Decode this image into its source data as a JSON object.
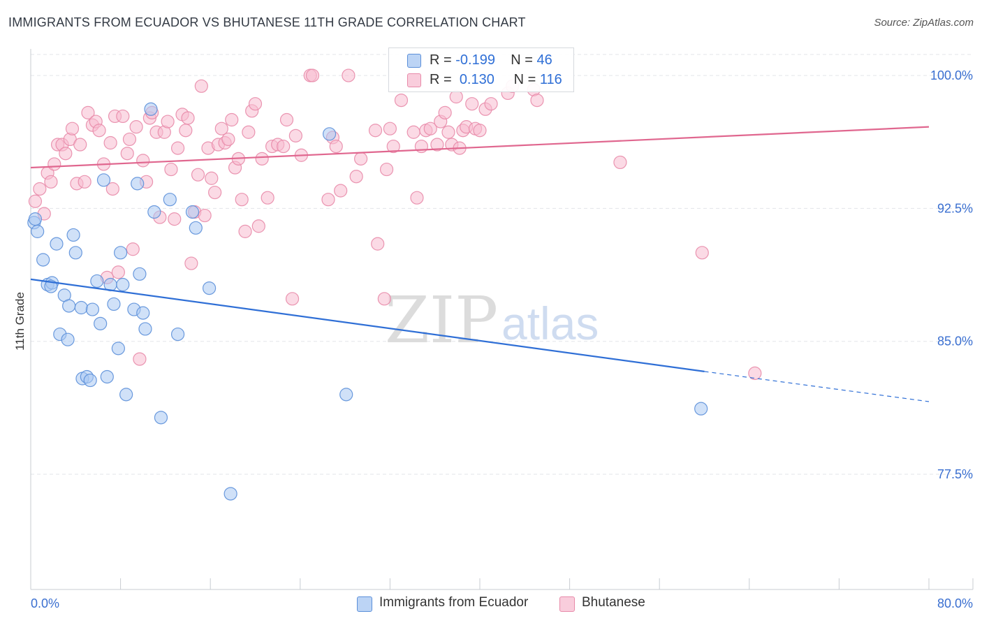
{
  "title": "IMMIGRANTS FROM ECUADOR VS BHUTANESE 11TH GRADE CORRELATION CHART",
  "source": "Source: ZipAtlas.com",
  "watermark": {
    "zip": "ZIP",
    "atlas": "atlas"
  },
  "legend": {
    "rows": [
      {
        "r_label": "R =",
        "r_value": "-0.199",
        "n_label": "N =",
        "n_value": "46"
      },
      {
        "r_label": "R =",
        "r_value": "0.130",
        "n_label": "N =",
        "n_value": "116"
      }
    ]
  },
  "colors": {
    "series1_fill": "#a9c8f2",
    "series1_stroke": "#5b8fd9",
    "series1_line": "#2f6fd6",
    "series2_fill": "#f7bcd0",
    "series2_stroke": "#e88aa9",
    "series2_line": "#e0678f",
    "axis_label": "#3a6fd0",
    "grid": "#e3e5e9"
  },
  "chart_data": {
    "type": "scatter",
    "title": "IMMIGRANTS FROM ECUADOR VS BHUTANESE 11TH GRADE CORRELATION CHART",
    "xlabel": "",
    "ylabel": "11th Grade",
    "xlim": [
      0,
      80
    ],
    "ylim": [
      71.0,
      101.5
    ],
    "x_tick_labels": [
      "0.0%",
      "80.0%"
    ],
    "y_ticks": [
      77.5,
      85.0,
      92.5,
      100.0
    ],
    "y_tick_labels": [
      "77.5%",
      "85.0%",
      "92.5%",
      "100.0%"
    ],
    "grid": true,
    "series": [
      {
        "name": "Immigrants from Ecuador",
        "color": "#a9c8f2",
        "trend": {
          "x0": 0,
          "y0": 88.5,
          "x1": 60,
          "y1": 83.3,
          "dash_to_x": 80,
          "dash_to_y": 81.6
        },
        "points": [
          [
            0.3,
            91.7
          ],
          [
            0.6,
            91.2
          ],
          [
            1.1,
            89.6
          ],
          [
            1.5,
            88.2
          ],
          [
            1.9,
            88.3
          ],
          [
            2.3,
            90.5
          ],
          [
            2.6,
            85.4
          ],
          [
            3.0,
            87.6
          ],
          [
            3.3,
            85.1
          ],
          [
            3.4,
            87.0
          ],
          [
            3.8,
            91.0
          ],
          [
            4.0,
            90.0
          ],
          [
            4.5,
            86.9
          ],
          [
            4.6,
            82.9
          ],
          [
            5.0,
            83.0
          ],
          [
            5.3,
            82.8
          ],
          [
            5.5,
            86.8
          ],
          [
            5.9,
            88.4
          ],
          [
            6.2,
            86.0
          ],
          [
            6.5,
            94.1
          ],
          [
            6.8,
            83.0
          ],
          [
            7.1,
            88.2
          ],
          [
            7.4,
            87.1
          ],
          [
            7.8,
            84.6
          ],
          [
            8.0,
            90.0
          ],
          [
            8.2,
            88.2
          ],
          [
            8.5,
            82.0
          ],
          [
            9.2,
            86.8
          ],
          [
            9.5,
            93.9
          ],
          [
            9.7,
            88.8
          ],
          [
            10.0,
            86.6
          ],
          [
            10.2,
            85.7
          ],
          [
            10.7,
            98.1
          ],
          [
            11.0,
            92.3
          ],
          [
            11.6,
            80.7
          ],
          [
            12.4,
            93.0
          ],
          [
            13.1,
            85.4
          ],
          [
            14.4,
            92.3
          ],
          [
            14.7,
            91.4
          ],
          [
            15.9,
            88.0
          ],
          [
            17.8,
            76.4
          ],
          [
            26.6,
            96.7
          ],
          [
            28.1,
            82.0
          ],
          [
            59.7,
            81.2
          ],
          [
            0.4,
            91.9
          ],
          [
            1.8,
            88.1
          ]
        ]
      },
      {
        "name": "Bhutanese",
        "color": "#f7bcd0",
        "trend": {
          "x0": 0,
          "y0": 94.8,
          "x1": 80,
          "y1": 97.1
        },
        "points": [
          [
            0.4,
            92.9
          ],
          [
            0.8,
            93.6
          ],
          [
            1.2,
            92.2
          ],
          [
            1.5,
            94.5
          ],
          [
            1.8,
            94.0
          ],
          [
            2.1,
            95.0
          ],
          [
            2.4,
            96.1
          ],
          [
            2.8,
            96.1
          ],
          [
            3.1,
            95.6
          ],
          [
            3.5,
            96.4
          ],
          [
            3.7,
            97.0
          ],
          [
            4.1,
            93.9
          ],
          [
            4.4,
            96.1
          ],
          [
            4.8,
            94.0
          ],
          [
            5.1,
            97.9
          ],
          [
            5.5,
            97.2
          ],
          [
            5.8,
            97.4
          ],
          [
            6.1,
            96.9
          ],
          [
            6.5,
            95.0
          ],
          [
            6.8,
            88.6
          ],
          [
            7.1,
            96.2
          ],
          [
            7.3,
            93.6
          ],
          [
            7.5,
            97.7
          ],
          [
            7.8,
            88.9
          ],
          [
            8.2,
            97.7
          ],
          [
            8.6,
            95.6
          ],
          [
            8.8,
            96.4
          ],
          [
            9.1,
            90.2
          ],
          [
            9.4,
            97.1
          ],
          [
            9.7,
            84.0
          ],
          [
            10.0,
            95.2
          ],
          [
            10.3,
            94.0
          ],
          [
            10.6,
            97.6
          ],
          [
            10.8,
            97.9
          ],
          [
            11.2,
            96.8
          ],
          [
            11.5,
            92.0
          ],
          [
            11.9,
            96.8
          ],
          [
            12.2,
            97.4
          ],
          [
            12.5,
            94.7
          ],
          [
            12.8,
            91.9
          ],
          [
            13.1,
            95.9
          ],
          [
            13.5,
            97.8
          ],
          [
            13.8,
            96.9
          ],
          [
            14.0,
            97.6
          ],
          [
            14.3,
            89.4
          ],
          [
            14.6,
            92.3
          ],
          [
            14.9,
            94.4
          ],
          [
            15.2,
            99.4
          ],
          [
            15.5,
            92.1
          ],
          [
            15.8,
            95.9
          ],
          [
            16.1,
            94.2
          ],
          [
            16.4,
            93.4
          ],
          [
            16.7,
            96.1
          ],
          [
            17.0,
            97.0
          ],
          [
            17.3,
            96.2
          ],
          [
            17.6,
            96.4
          ],
          [
            17.9,
            97.5
          ],
          [
            18.2,
            94.8
          ],
          [
            18.5,
            95.3
          ],
          [
            18.8,
            93.0
          ],
          [
            19.1,
            91.2
          ],
          [
            19.4,
            96.8
          ],
          [
            19.7,
            98.0
          ],
          [
            20.0,
            98.4
          ],
          [
            20.3,
            91.5
          ],
          [
            20.6,
            95.3
          ],
          [
            21.1,
            93.1
          ],
          [
            21.5,
            96.0
          ],
          [
            22.0,
            96.1
          ],
          [
            22.5,
            96.0
          ],
          [
            22.8,
            97.5
          ],
          [
            23.3,
            87.4
          ],
          [
            23.6,
            96.6
          ],
          [
            24.1,
            95.5
          ],
          [
            24.9,
            100.0
          ],
          [
            25.1,
            100.0
          ],
          [
            26.5,
            93.0
          ],
          [
            26.9,
            96.5
          ],
          [
            27.2,
            96.0
          ],
          [
            27.6,
            93.5
          ],
          [
            28.3,
            100.0
          ],
          [
            29.0,
            94.3
          ],
          [
            29.4,
            95.3
          ],
          [
            30.7,
            96.9
          ],
          [
            30.9,
            90.5
          ],
          [
            31.5,
            87.4
          ],
          [
            31.7,
            94.7
          ],
          [
            32.0,
            97.0
          ],
          [
            32.3,
            96.0
          ],
          [
            33.0,
            98.6
          ],
          [
            34.1,
            96.8
          ],
          [
            34.4,
            93.1
          ],
          [
            34.8,
            96.0
          ],
          [
            35.2,
            96.9
          ],
          [
            35.6,
            97.0
          ],
          [
            36.2,
            96.1
          ],
          [
            36.5,
            97.4
          ],
          [
            36.9,
            97.9
          ],
          [
            37.2,
            96.8
          ],
          [
            37.5,
            96.1
          ],
          [
            37.9,
            98.8
          ],
          [
            38.2,
            95.9
          ],
          [
            38.5,
            96.9
          ],
          [
            38.8,
            97.1
          ],
          [
            39.3,
            98.4
          ],
          [
            39.6,
            97.0
          ],
          [
            40.0,
            96.9
          ],
          [
            40.5,
            98.1
          ],
          [
            41.0,
            98.4
          ],
          [
            42.5,
            99.0
          ],
          [
            42.9,
            99.4
          ],
          [
            44.8,
            99.2
          ],
          [
            45.1,
            98.6
          ],
          [
            52.5,
            95.1
          ],
          [
            59.8,
            90.0
          ],
          [
            64.5,
            83.2
          ]
        ]
      }
    ]
  }
}
